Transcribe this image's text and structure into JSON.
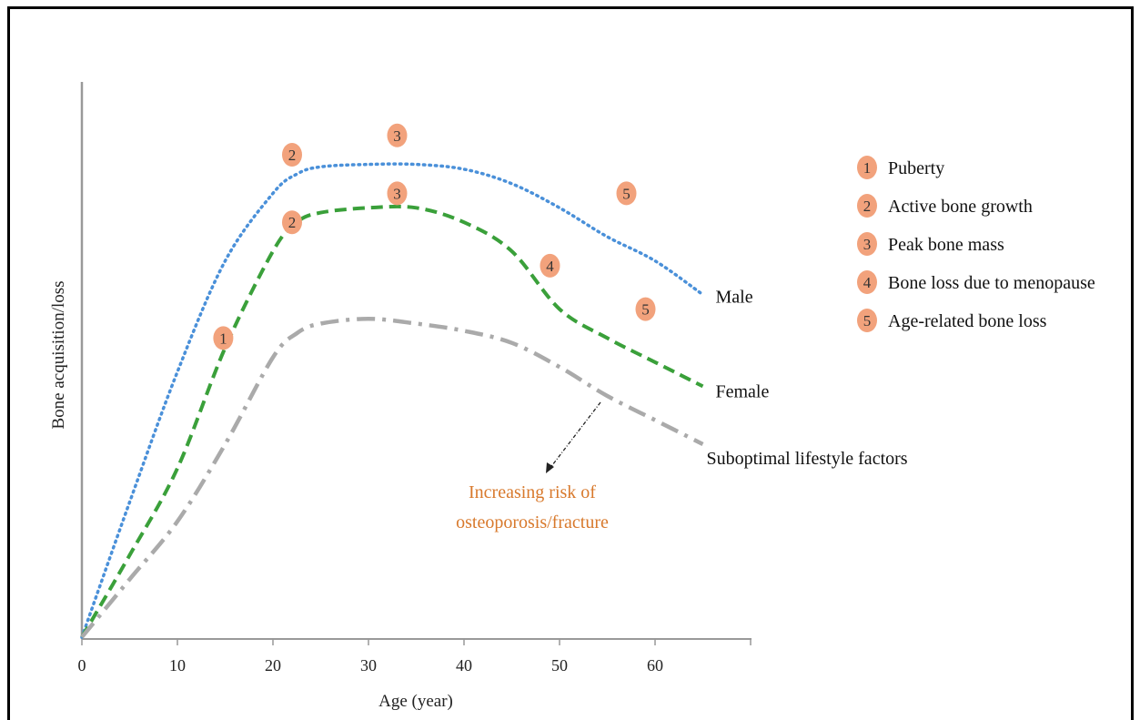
{
  "chart_data": {
    "type": "line",
    "title": "",
    "xlabel": "Age (year)",
    "ylabel": "Bone acquisition/loss",
    "xlim": [
      0,
      70
    ],
    "ylim": [
      0,
      100
    ],
    "x_ticks": [
      0,
      10,
      20,
      30,
      40,
      50,
      60
    ],
    "grid": false,
    "legend_position": "right",
    "series": [
      {
        "name": "Male",
        "color": "#4a90d9",
        "style": "dotted",
        "x": [
          0,
          5,
          10,
          15,
          20,
          22.5,
          25,
          30,
          35,
          40,
          45,
          50,
          55,
          60,
          65
        ],
        "y": [
          0,
          28,
          55,
          78,
          92,
          96,
          97.5,
          98,
          98,
          97,
          94,
          89,
          83,
          78,
          71
        ]
      },
      {
        "name": "Female",
        "color": "#3aa03a",
        "style": "dashed",
        "x": [
          0,
          5,
          10,
          15,
          20,
          22.5,
          25,
          30,
          35,
          40,
          45,
          50,
          55,
          60,
          65
        ],
        "y": [
          0,
          17,
          35,
          60,
          80,
          86,
          88,
          89,
          89,
          86,
          80,
          68,
          62,
          57,
          52
        ]
      },
      {
        "name": "Suboptimal lifestyle factors",
        "color": "#aaaaaa",
        "style": "dashdot",
        "x": [
          0,
          5,
          10,
          15,
          20,
          22.5,
          25,
          30,
          35,
          40,
          45,
          50,
          55,
          60,
          65
        ],
        "y": [
          0,
          12,
          24,
          40,
          58,
          63,
          65,
          66,
          65,
          63.5,
          61,
          56,
          50,
          45,
          40
        ]
      }
    ],
    "markers": [
      {
        "label": "1",
        "series": "Female",
        "x": 14.8,
        "y": 62
      },
      {
        "label": "2",
        "series": "Male",
        "x": 22,
        "y": 100
      },
      {
        "label": "3",
        "series": "Male",
        "x": 33,
        "y": 104
      },
      {
        "label": "5",
        "series": "Male",
        "x": 57,
        "y": 92
      },
      {
        "label": "2",
        "series": "Female",
        "x": 22,
        "y": 86
      },
      {
        "label": "3",
        "series": "Female",
        "x": 33,
        "y": 92
      },
      {
        "label": "4",
        "series": "Female",
        "x": 49,
        "y": 77
      },
      {
        "label": "5",
        "series": "Female",
        "x": 59,
        "y": 68
      }
    ],
    "legend": [
      {
        "num": "1",
        "text": "Puberty"
      },
      {
        "num": "2",
        "text": "Active bone growth"
      },
      {
        "num": "3",
        "text": "Peak bone mass"
      },
      {
        "num": "4",
        "text": "Bone loss due to menopause"
      },
      {
        "num": "5",
        "text": "Age-related bone loss"
      }
    ],
    "annotation": {
      "line1": "Increasing risk of",
      "line2": "osteoporosis/fracture",
      "color": "#d8792c"
    },
    "badge_color": "#f2a27c"
  }
}
